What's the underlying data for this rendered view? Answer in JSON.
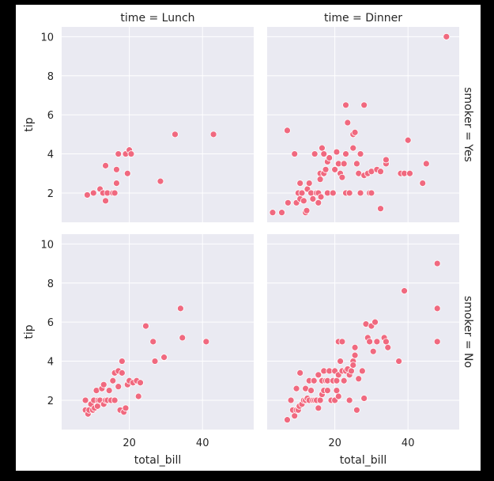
{
  "chart_data": {
    "type": "scatter",
    "x_variable": "total_bill",
    "y_variable": "tip",
    "xlim": [
      1.5,
      54
    ],
    "ylim": [
      0.5,
      10.5
    ],
    "xticks": [
      20,
      40
    ],
    "yticks": [
      2,
      4,
      6,
      8,
      10
    ],
    "marker_color": "#f0697f",
    "background": "#eaeaf2",
    "grid": true,
    "col_titles": [
      "time = Lunch",
      "time = Dinner"
    ],
    "row_titles": [
      "smoker = Yes",
      "smoker = No"
    ],
    "panels": [
      {
        "row": 0,
        "col": 0,
        "points": [
          [
            8.5,
            1.9
          ],
          [
            10.2,
            2.0
          ],
          [
            12.0,
            2.2
          ],
          [
            12.8,
            2.0
          ],
          [
            13.5,
            1.6
          ],
          [
            13.5,
            3.4
          ],
          [
            14.0,
            2.0
          ],
          [
            15.5,
            2.0
          ],
          [
            16.0,
            2.0
          ],
          [
            16.5,
            2.5
          ],
          [
            16.5,
            3.2
          ],
          [
            17.0,
            4.0
          ],
          [
            19.0,
            4.0
          ],
          [
            19.5,
            3.0
          ],
          [
            20.0,
            4.2
          ],
          [
            20.5,
            4.0
          ],
          [
            28.5,
            2.6
          ],
          [
            32.5,
            5.0
          ],
          [
            43.0,
            5.0
          ]
        ]
      },
      {
        "row": 0,
        "col": 1,
        "points": [
          [
            3.0,
            1.0
          ],
          [
            5.5,
            1.0
          ],
          [
            7.0,
            5.2
          ],
          [
            7.2,
            1.5
          ],
          [
            9.0,
            4.0
          ],
          [
            9.5,
            1.5
          ],
          [
            10.0,
            2.0
          ],
          [
            10.5,
            1.7
          ],
          [
            10.5,
            2.5
          ],
          [
            11.0,
            2.0
          ],
          [
            11.5,
            1.6
          ],
          [
            12.0,
            1.0
          ],
          [
            12.3,
            1.1
          ],
          [
            12.5,
            2.2
          ],
          [
            13.0,
            2.5
          ],
          [
            13.5,
            2.0
          ],
          [
            14.0,
            1.7
          ],
          [
            14.5,
            4.0
          ],
          [
            15.0,
            2.0
          ],
          [
            15.5,
            2.0
          ],
          [
            15.5,
            1.5
          ],
          [
            16.0,
            3.0
          ],
          [
            16.0,
            2.7
          ],
          [
            16.2,
            1.8
          ],
          [
            16.5,
            4.3
          ],
          [
            17.0,
            3.0
          ],
          [
            17.0,
            4.0
          ],
          [
            17.5,
            3.2
          ],
          [
            18.0,
            3.6
          ],
          [
            18.0,
            2.0
          ],
          [
            18.5,
            3.8
          ],
          [
            19.5,
            2.0
          ],
          [
            20.0,
            3.2
          ],
          [
            20.5,
            4.1
          ],
          [
            21.0,
            3.5
          ],
          [
            21.5,
            3.0
          ],
          [
            22.0,
            2.8
          ],
          [
            22.5,
            3.5
          ],
          [
            23.0,
            2.0
          ],
          [
            23.0,
            6.5
          ],
          [
            23.5,
            5.6
          ],
          [
            23.0,
            4.0
          ],
          [
            24.0,
            2.0
          ],
          [
            25.0,
            4.3
          ],
          [
            25.0,
            5.0
          ],
          [
            25.5,
            5.1
          ],
          [
            26.0,
            3.5
          ],
          [
            26.5,
            3.0
          ],
          [
            27.0,
            4.0
          ],
          [
            27.0,
            2.0
          ],
          [
            28.0,
            6.5
          ],
          [
            28.0,
            2.9
          ],
          [
            29.0,
            3.0
          ],
          [
            29.5,
            2.0
          ],
          [
            30.0,
            3.1
          ],
          [
            30.0,
            2.0
          ],
          [
            31.5,
            3.2
          ],
          [
            32.5,
            1.2
          ],
          [
            32.5,
            3.1
          ],
          [
            34.0,
            3.5
          ],
          [
            34.0,
            3.7
          ],
          [
            38.0,
            3.0
          ],
          [
            39.0,
            3.0
          ],
          [
            40.0,
            4.7
          ],
          [
            40.5,
            3.0
          ],
          [
            44.0,
            2.5
          ],
          [
            45.0,
            3.5
          ],
          [
            50.5,
            10.0
          ]
        ]
      },
      {
        "row": 1,
        "col": 0,
        "points": [
          [
            8.0,
            2.0
          ],
          [
            8.0,
            1.5
          ],
          [
            8.7,
            1.3
          ],
          [
            9.0,
            1.5
          ],
          [
            9.5,
            1.8
          ],
          [
            10.0,
            1.5
          ],
          [
            10.3,
            2.0
          ],
          [
            10.5,
            1.6
          ],
          [
            11.0,
            2.5
          ],
          [
            11.3,
            1.7
          ],
          [
            11.5,
            2.0
          ],
          [
            12.0,
            2.0
          ],
          [
            12.5,
            2.6
          ],
          [
            13.0,
            2.8
          ],
          [
            13.0,
            1.8
          ],
          [
            13.5,
            2.0
          ],
          [
            14.0,
            2.0
          ],
          [
            14.5,
            2.5
          ],
          [
            15.0,
            2.0
          ],
          [
            15.5,
            3.0
          ],
          [
            16.0,
            3.4
          ],
          [
            16.0,
            2.0
          ],
          [
            17.0,
            3.5
          ],
          [
            17.0,
            2.7
          ],
          [
            17.5,
            1.5
          ],
          [
            18.0,
            3.4
          ],
          [
            18.0,
            4.0
          ],
          [
            18.5,
            1.4
          ],
          [
            19.0,
            1.6
          ],
          [
            19.5,
            2.8
          ],
          [
            20.0,
            3.0
          ],
          [
            21.0,
            2.9
          ],
          [
            22.0,
            3.0
          ],
          [
            22.5,
            2.2
          ],
          [
            23.0,
            2.9
          ],
          [
            24.5,
            5.8
          ],
          [
            26.5,
            5.0
          ],
          [
            27.0,
            4.0
          ],
          [
            29.5,
            4.2
          ],
          [
            34.0,
            6.7
          ],
          [
            34.5,
            5.2
          ],
          [
            41.0,
            5.0
          ]
        ]
      },
      {
        "row": 1,
        "col": 1,
        "points": [
          [
            7.0,
            1.0
          ],
          [
            8.0,
            2.0
          ],
          [
            8.5,
            1.5
          ],
          [
            9.0,
            1.2
          ],
          [
            9.5,
            1.5
          ],
          [
            9.5,
            2.6
          ],
          [
            10.0,
            1.5
          ],
          [
            10.3,
            1.7
          ],
          [
            10.5,
            3.4
          ],
          [
            11.0,
            1.8
          ],
          [
            11.5,
            2.0
          ],
          [
            12.0,
            2.0
          ],
          [
            12.0,
            2.6
          ],
          [
            12.5,
            2.1
          ],
          [
            13.0,
            3.0
          ],
          [
            13.0,
            2.0
          ],
          [
            13.5,
            2.5
          ],
          [
            14.0,
            2.0
          ],
          [
            14.3,
            3.0
          ],
          [
            14.5,
            2.0
          ],
          [
            15.0,
            2.0
          ],
          [
            15.5,
            3.3
          ],
          [
            15.5,
            1.6
          ],
          [
            16.0,
            2.0
          ],
          [
            16.5,
            3.0
          ],
          [
            16.5,
            2.3
          ],
          [
            17.0,
            2.5
          ],
          [
            17.0,
            3.5
          ],
          [
            17.5,
            3.0
          ],
          [
            18.0,
            3.0
          ],
          [
            18.0,
            2.5
          ],
          [
            18.5,
            3.5
          ],
          [
            19.0,
            2.0
          ],
          [
            19.5,
            3.0
          ],
          [
            20.0,
            2.0
          ],
          [
            20.0,
            3.5
          ],
          [
            20.5,
            2.5
          ],
          [
            20.5,
            3.0
          ],
          [
            21.0,
            2.2
          ],
          [
            21.0,
            3.3
          ],
          [
            21.0,
            5.0
          ],
          [
            21.5,
            4.0
          ],
          [
            22.0,
            5.0
          ],
          [
            22.0,
            3.5
          ],
          [
            22.5,
            3.0
          ],
          [
            23.0,
            3.5
          ],
          [
            23.5,
            3.6
          ],
          [
            24.0,
            2.0
          ],
          [
            24.0,
            3.3
          ],
          [
            24.5,
            3.5
          ],
          [
            25.0,
            4.0
          ],
          [
            25.0,
            3.8
          ],
          [
            25.5,
            4.7
          ],
          [
            25.5,
            4.3
          ],
          [
            26.0,
            1.5
          ],
          [
            26.5,
            3.1
          ],
          [
            27.5,
            3.5
          ],
          [
            28.0,
            2.1
          ],
          [
            28.5,
            5.9
          ],
          [
            29.0,
            5.2
          ],
          [
            29.5,
            5.0
          ],
          [
            30.0,
            5.8
          ],
          [
            30.5,
            4.5
          ],
          [
            31.0,
            6.0
          ],
          [
            31.5,
            5.0
          ],
          [
            33.5,
            5.2
          ],
          [
            34.0,
            5.0
          ],
          [
            34.5,
            4.7
          ],
          [
            37.5,
            4.0
          ],
          [
            39.0,
            7.6
          ],
          [
            48.0,
            9.0
          ],
          [
            48.0,
            6.7
          ],
          [
            48.0,
            5.0
          ]
        ]
      }
    ]
  }
}
